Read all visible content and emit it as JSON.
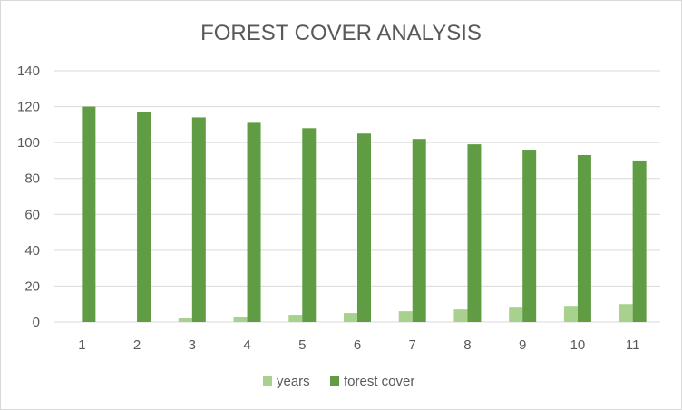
{
  "chart_data": {
    "type": "bar",
    "title": "FOREST COVER ANALYSIS",
    "xlabel": "",
    "ylabel": "",
    "categories": [
      "1",
      "2",
      "3",
      "4",
      "5",
      "6",
      "7",
      "8",
      "9",
      "10",
      "11"
    ],
    "ylim": [
      0,
      140
    ],
    "yticks": [
      0,
      20,
      40,
      60,
      80,
      100,
      120,
      140
    ],
    "grid": true,
    "legend_position": "bottom",
    "series": [
      {
        "name": "years",
        "color": "#a9d18e",
        "values": [
          0,
          0,
          2,
          3,
          4,
          5,
          6,
          7,
          8,
          9,
          10
        ]
      },
      {
        "name": "forest cover",
        "color": "#5f9c43",
        "values": [
          120,
          117,
          114,
          111,
          108,
          105,
          102,
          99,
          96,
          93,
          90
        ]
      }
    ]
  }
}
